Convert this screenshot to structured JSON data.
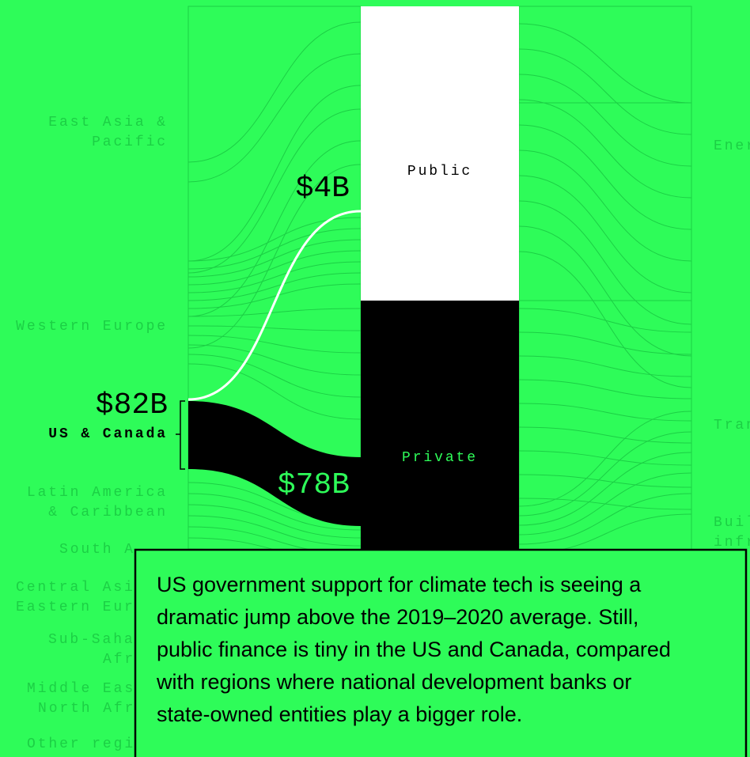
{
  "left_labels": [
    "East Asia &",
    "Pacific",
    "Western Europe",
    "Latin America",
    "& Caribbean",
    "South A",
    "Central Asi",
    "Eastern Eur",
    "Sub-Saha",
    "Afr",
    "Middle Eas",
    "North Afr",
    "Other regi"
  ],
  "right_labels": [
    "Ener",
    "Tran",
    "Buil",
    "infr"
  ],
  "nodes": {
    "public": "Public",
    "private": "Private"
  },
  "highlight": {
    "total": "$82B",
    "region": "US & Canada",
    "public_flow": "$4B",
    "private_flow": "$78B"
  },
  "callout": [
    "US government support for climate tech is seeing a",
    "dramatic jump above the 2019–2020 average. Still,",
    "public finance is tiny in the US and Canada, compared",
    "with regions where national development banks or",
    "state-owned entities play a bigger role."
  ]
}
